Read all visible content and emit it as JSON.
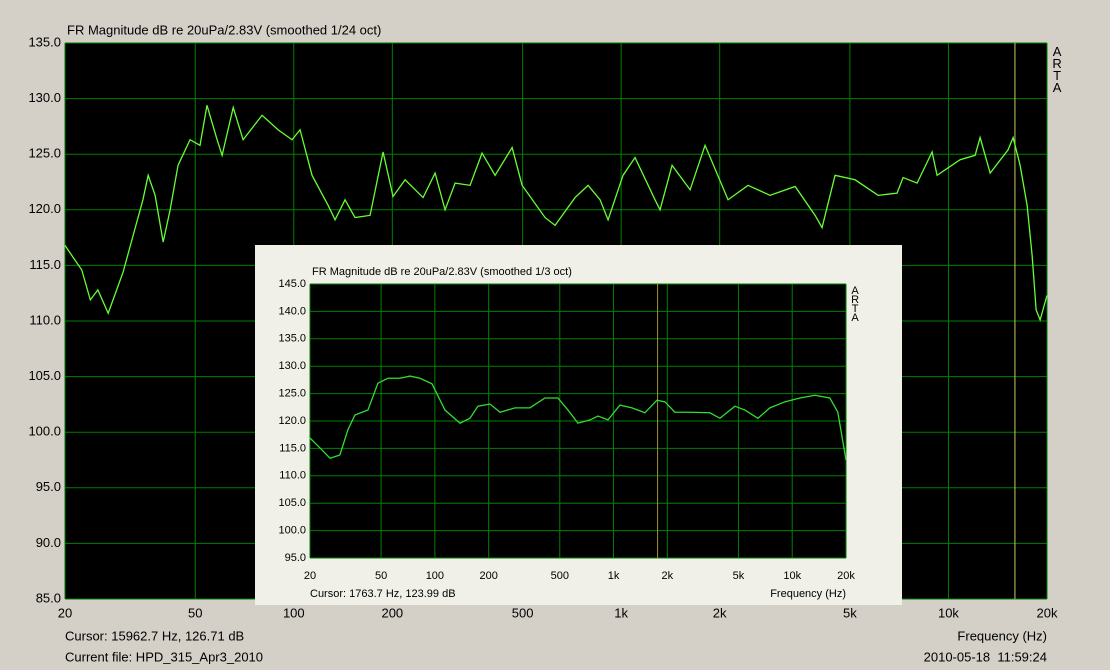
{
  "chart_data": [
    {
      "type": "line",
      "title": "FR Magnitude dB re 20uPa/2.83V (smoothed 1/24 oct)",
      "watermark": "ARTA",
      "xlabel": "Frequency (Hz)",
      "cursor": {
        "value": 15962.7,
        "label": "Cursor: 15962.7 Hz, 126.71 dB"
      },
      "file_label": "Current file: HPD_315_Apr3_2010",
      "timestamp": "2010-05-18  11:59:24",
      "log_x": true,
      "grid": true,
      "color": "#66ff33",
      "grid_color": "#008000",
      "cursor_color": "#c8c864",
      "x": [
        20,
        21.2,
        22.5,
        23.9,
        25.2,
        27.1,
        30.1,
        32.3,
        34.6,
        35.9,
        37.7,
        39.9,
        41.9,
        44.3,
        48.2,
        51.7,
        54.3,
        58.3,
        60.4,
        65.3,
        70,
        80,
        89.5,
        98.8,
        104.5,
        113.7,
        127.3,
        133.7,
        143.4,
        153.8,
        171,
        187.4,
        201,
        218.8,
        248.3,
        270.2,
        289.8,
        311,
        345.6,
        375.9,
        412,
        464.5,
        498.3,
        585.8,
        628.3,
        723.2,
        792.6,
        862.4,
        912.2,
        1013.5,
        1102.7,
        1269.4,
        1314.9,
        1431,
        1624.6,
        1805,
        2121.5,
        2442,
        2851,
        3401,
        3913,
        4110,
        4504,
        5185,
        6096,
        6966,
        7266,
        8019,
        8911,
        9231,
        10852,
        12062,
        12494,
        13409,
        15213,
        15758,
        16553,
        17390,
        18013,
        18527,
        19055,
        20000
      ],
      "values": [
        116.8,
        115.7,
        114.6,
        111.9,
        112.8,
        110.7,
        114.4,
        117.7,
        120.9,
        123.1,
        121.3,
        117.1,
        120.0,
        124.0,
        126.3,
        125.8,
        129.4,
        126.3,
        124.9,
        129.2,
        126.3,
        128.5,
        127.2,
        126.3,
        127.2,
        123.1,
        120.4,
        119.1,
        120.9,
        119.3,
        119.5,
        125.2,
        121.2,
        122.7,
        121.1,
        123.3,
        120.0,
        122.4,
        122.2,
        125.1,
        123.1,
        125.6,
        122.2,
        119.3,
        118.6,
        121.1,
        122.2,
        120.9,
        119.1,
        123.1,
        124.7,
        120.9,
        120.0,
        124.0,
        121.8,
        125.8,
        120.9,
        122.2,
        121.3,
        122.1,
        119.5,
        118.4,
        123.1,
        122.7,
        121.3,
        121.5,
        122.9,
        122.4,
        125.2,
        123.1,
        124.5,
        124.9,
        126.5,
        123.3,
        125.4,
        126.5,
        124.0,
        120.4,
        115.9,
        111.0,
        110.1,
        112.3
      ],
      "xlim": [
        20,
        20000
      ],
      "ylim": [
        85,
        135
      ],
      "xticks": [
        20,
        50,
        100,
        200,
        500,
        {
          "value": 1000,
          "label": "1k"
        },
        {
          "value": 2000,
          "label": "2k"
        },
        {
          "value": 5000,
          "label": "5k"
        },
        {
          "value": 10000,
          "label": "10k"
        },
        {
          "value": 20000,
          "label": "20k"
        }
      ],
      "yticks": [
        {
          "value": 85,
          "label": "85.0"
        },
        {
          "value": 90,
          "label": "90.0"
        },
        {
          "value": 95,
          "label": "95.0"
        },
        {
          "value": 100,
          "label": "100.0"
        },
        {
          "value": 105,
          "label": "105.0"
        },
        {
          "value": 110,
          "label": "110.0"
        },
        {
          "value": 115,
          "label": "115.0"
        },
        {
          "value": 120,
          "label": "120.0"
        },
        {
          "value": 125,
          "label": "125.0"
        },
        {
          "value": 130,
          "label": "130.0"
        },
        {
          "value": 135,
          "label": "135.0"
        }
      ]
    },
    {
      "type": "line",
      "title": "FR Magnitude dB re 20uPa/2.83V (smoothed 1/3 oct)",
      "watermark": "ARTA",
      "xlabel": "Frequency (Hz)",
      "cursor": {
        "value": 1763.7,
        "label": "Cursor: 1763.7 Hz, 123.99 dB"
      },
      "log_x": true,
      "grid": true,
      "color": "#33dd33",
      "grid_color": "#008000",
      "cursor_color": "#999933",
      "x": [
        20,
        22.7,
        25.9,
        29.4,
        32.6,
        35.7,
        42.2,
        48,
        54.6,
        63.8,
        72.6,
        82.5,
        96.3,
        113.9,
        138.3,
        157.2,
        174.3,
        203.4,
        231.5,
        280.6,
        340.5,
        413,
        488.4,
        555.7,
        632.3,
        738.3,
        818.3,
        930.9,
        1086,
        1268,
        1498,
        1749,
        1939,
        2205,
        2676,
        3463,
        3938,
        4777,
        5436,
        6427,
        7498,
        9097,
        11041,
        13396,
        16234,
        17998,
        20000
      ],
      "values": [
        116.9,
        115.1,
        113.2,
        113.8,
        118.4,
        121.1,
        122.0,
        126.9,
        127.8,
        127.8,
        128.2,
        127.8,
        126.8,
        122.0,
        119.6,
        120.5,
        122.7,
        123.1,
        121.6,
        122.4,
        122.4,
        124.2,
        124.2,
        122.0,
        119.6,
        120.2,
        120.9,
        120.2,
        122.9,
        122.4,
        121.5,
        123.8,
        123.5,
        121.6,
        121.6,
        121.5,
        120.5,
        122.7,
        122.0,
        120.5,
        122.4,
        123.5,
        124.2,
        124.7,
        124.2,
        121.6,
        112.9
      ],
      "xlim": [
        20,
        20000
      ],
      "ylim": [
        95,
        145
      ],
      "xticks": [
        20,
        50,
        100,
        200,
        500,
        {
          "value": 1000,
          "label": "1k"
        },
        {
          "value": 2000,
          "label": "2k"
        },
        {
          "value": 5000,
          "label": "5k"
        },
        {
          "value": 10000,
          "label": "10k"
        },
        {
          "value": 20000,
          "label": "20k"
        }
      ],
      "yticks": [
        {
          "value": 95,
          "label": "95.0"
        },
        {
          "value": 100,
          "label": "100.0"
        },
        {
          "value": 105,
          "label": "105.0"
        },
        {
          "value": 110,
          "label": "110.0"
        },
        {
          "value": 115,
          "label": "115.0"
        },
        {
          "value": 120,
          "label": "120.0"
        },
        {
          "value": 125,
          "label": "125.0"
        },
        {
          "value": 130,
          "label": "130.0"
        },
        {
          "value": 135,
          "label": "135.0"
        },
        {
          "value": 140,
          "label": "140.0"
        },
        {
          "value": 145,
          "label": "145.0"
        }
      ]
    }
  ]
}
